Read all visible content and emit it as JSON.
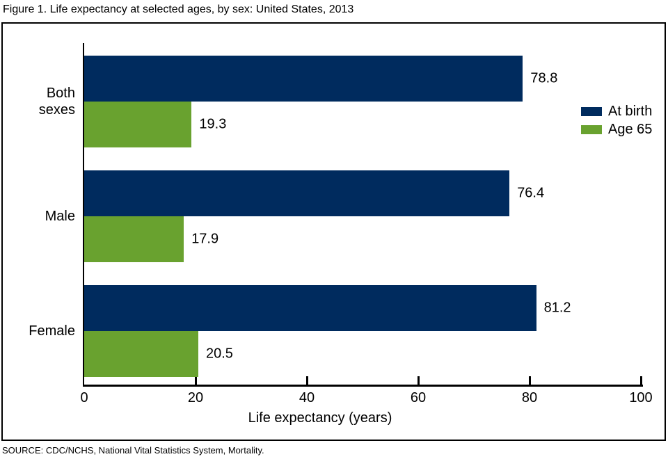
{
  "title": "Figure 1. Life expectancy at selected ages, by sex: United States, 2013",
  "source": "SOURCE: CDC/NCHS, National Vital Statistics System, Mortality.",
  "colors": {
    "at_birth": "#002b5e",
    "age_65": "#69a22f",
    "axis": "#000000",
    "background": "#ffffff"
  },
  "chart_data": {
    "type": "bar",
    "orientation": "horizontal",
    "title": "Figure 1. Life expectancy at selected ages, by sex: United States, 2013",
    "categories": [
      "Both sexes",
      "Male",
      "Female"
    ],
    "series": [
      {
        "name": "At birth",
        "color": "#002b5e",
        "values": [
          78.8,
          76.4,
          81.2
        ]
      },
      {
        "name": "Age 65",
        "color": "#69a22f",
        "values": [
          19.3,
          17.9,
          20.5
        ]
      }
    ],
    "value_labels": [
      [
        "78.8",
        "76.4",
        "81.2"
      ],
      [
        "19.3",
        "17.9",
        "20.5"
      ]
    ],
    "xlabel": "Life expectancy (years)",
    "xlim": [
      0,
      100
    ],
    "xticks": [
      "0",
      "20",
      "40",
      "60",
      "80",
      "100"
    ],
    "legend_position": "upper right",
    "grid": false
  }
}
